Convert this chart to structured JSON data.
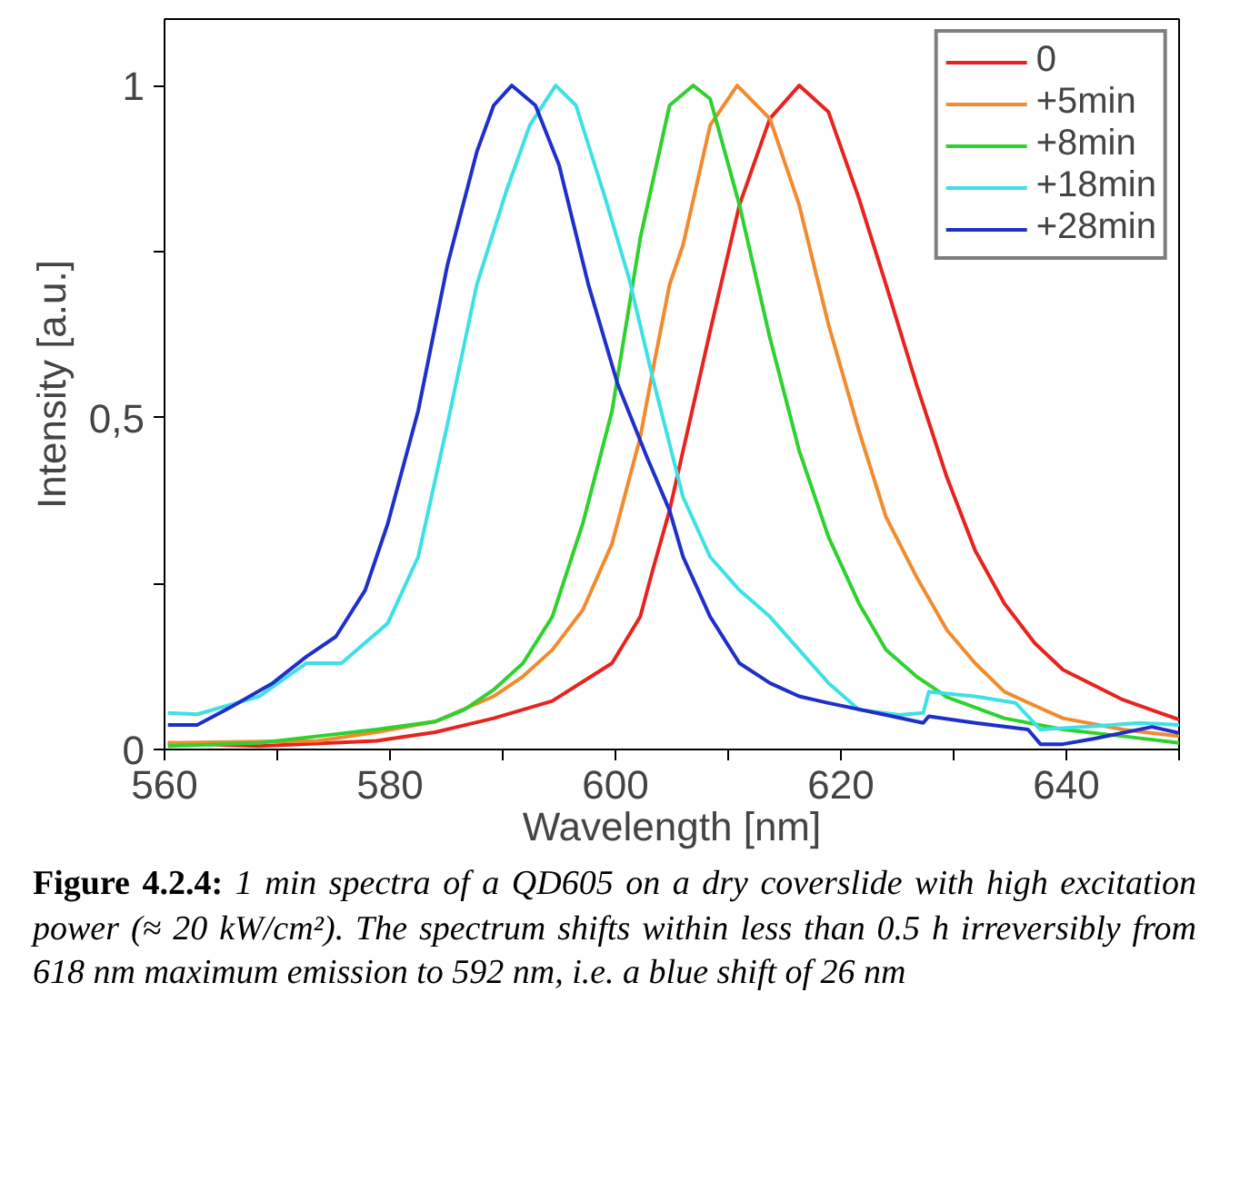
{
  "chart_data": {
    "type": "line",
    "xlabel": "Wavelength [nm]",
    "ylabel": "Intensity [a.u.]",
    "xlim": [
      560,
      650
    ],
    "ylim": [
      0,
      1.1
    ],
    "xticks": [
      560,
      {
        "value": 570,
        "label": null
      },
      580,
      {
        "value": 590,
        "label": null
      },
      600,
      {
        "value": 610,
        "label": null
      },
      620,
      {
        "value": 630,
        "label": null
      },
      640,
      {
        "value": 650,
        "label": null
      }
    ],
    "yticks": [
      0,
      {
        "value": 0.25,
        "label": null
      },
      {
        "value": 0.5,
        "label": "0,5"
      },
      {
        "value": 0.75,
        "label": null
      },
      1
    ],
    "grid": false,
    "legend": "top right",
    "marker": "none",
    "line_style": "solid",
    "series": [
      {
        "name": "0",
        "color": "#e8231f",
        "x": [
          560.3,
          568.4,
          578.8,
          584,
          589.2,
          594.4,
          599.7,
          602.2,
          603.3,
          604.8,
          608.4,
          611,
          613.7,
          616.3,
          618.9,
          621.6,
          624,
          626.7,
          629.4,
          631.9,
          634.5,
          637.2,
          639.7,
          645,
          650
        ],
        "values": [
          0.01,
          0.005,
          0.013,
          0.026,
          0.047,
          0.073,
          0.13,
          0.2,
          0.27,
          0.36,
          0.63,
          0.82,
          0.95,
          1.0,
          0.96,
          0.83,
          0.7,
          0.55,
          0.41,
          0.3,
          0.22,
          0.16,
          0.12,
          0.075,
          0.045
        ]
      },
      {
        "name": "+5min",
        "color": "#f28a2e",
        "x": [
          560.3,
          573.6,
          578.8,
          584,
          589.2,
          591.8,
          594.4,
          597.1,
          599.7,
          602.2,
          603.3,
          604.8,
          606,
          608.4,
          610.8,
          613.7,
          616.3,
          618.9,
          621.6,
          624,
          626.7,
          629.4,
          631.9,
          634.5,
          637.2,
          639.7,
          645,
          650
        ],
        "values": [
          0.01,
          0.013,
          0.026,
          0.042,
          0.08,
          0.11,
          0.15,
          0.21,
          0.31,
          0.47,
          0.57,
          0.7,
          0.76,
          0.94,
          1.0,
          0.95,
          0.82,
          0.64,
          0.48,
          0.35,
          0.26,
          0.18,
          0.13,
          0.087,
          0.066,
          0.047,
          0.03,
          0.02
        ]
      },
      {
        "name": "+8min",
        "color": "#2ed12e",
        "x": [
          560.3,
          568.4,
          573.6,
          578.8,
          584,
          586.6,
          589.2,
          591.8,
          594.4,
          597.1,
          599.7,
          602.2,
          604.8,
          606.9,
          608.4,
          611,
          613.7,
          616.3,
          618.9,
          621.6,
          624,
          626.7,
          629.4,
          634.5,
          639.7,
          645,
          650
        ],
        "values": [
          0.005,
          0.01,
          0.02,
          0.03,
          0.042,
          0.06,
          0.09,
          0.13,
          0.2,
          0.34,
          0.51,
          0.77,
          0.97,
          1.0,
          0.98,
          0.82,
          0.62,
          0.45,
          0.32,
          0.22,
          0.15,
          0.11,
          0.079,
          0.047,
          0.03,
          0.02,
          0.01
        ]
      },
      {
        "name": "+18min",
        "color": "#3ee0e6",
        "x": [
          560.3,
          562.9,
          568.4,
          572.6,
          575.7,
          579.8,
          582.5,
          585.1,
          587.7,
          590.3,
          592.4,
          594.7,
          596.5,
          599.1,
          601.2,
          603.3,
          604.8,
          606,
          608.4,
          611,
          613.7,
          616.3,
          618.9,
          621.6,
          625.2,
          627.3,
          627.8,
          631.9,
          635.5,
          637.7,
          642.4,
          646.5,
          650
        ],
        "values": [
          0.055,
          0.053,
          0.08,
          0.13,
          0.13,
          0.19,
          0.29,
          0.49,
          0.7,
          0.84,
          0.94,
          1.0,
          0.97,
          0.83,
          0.71,
          0.56,
          0.46,
          0.38,
          0.29,
          0.24,
          0.2,
          0.15,
          0.1,
          0.06,
          0.052,
          0.055,
          0.087,
          0.08,
          0.07,
          0.03,
          0.035,
          0.04,
          0.037
        ]
      },
      {
        "name": "+28min",
        "color": "#1f2fc9",
        "x": [
          560.3,
          562.9,
          566,
          569.6,
          572.6,
          575.2,
          577.8,
          579.8,
          582.5,
          585.1,
          587.7,
          589.2,
          590.8,
          592.9,
          595,
          597.6,
          600.2,
          602.8,
          604.8,
          606,
          608.4,
          611,
          613.7,
          616.3,
          618.9,
          624,
          627.3,
          627.8,
          631.9,
          636.6,
          637.7,
          639.7,
          642.4,
          647.6,
          650
        ],
        "values": [
          0.037,
          0.037,
          0.065,
          0.1,
          0.14,
          0.17,
          0.24,
          0.34,
          0.51,
          0.73,
          0.9,
          0.97,
          1.0,
          0.97,
          0.88,
          0.7,
          0.55,
          0.44,
          0.36,
          0.29,
          0.2,
          0.13,
          0.1,
          0.08,
          0.07,
          0.052,
          0.04,
          0.05,
          0.04,
          0.03,
          0.008,
          0.008,
          0.016,
          0.034,
          0.025
        ]
      }
    ],
    "annotations": [
      "Figure 4.2.4:",
      "1 min spectra of a QD605 on a dry coverslide with high excitation power (≈  20 kW/cm²). The spectrum shifts within less than 0.5 h irreversibly from 618 nm maximum emission to 592 nm, i.e. a blue shift of 26 nm"
    ]
  }
}
